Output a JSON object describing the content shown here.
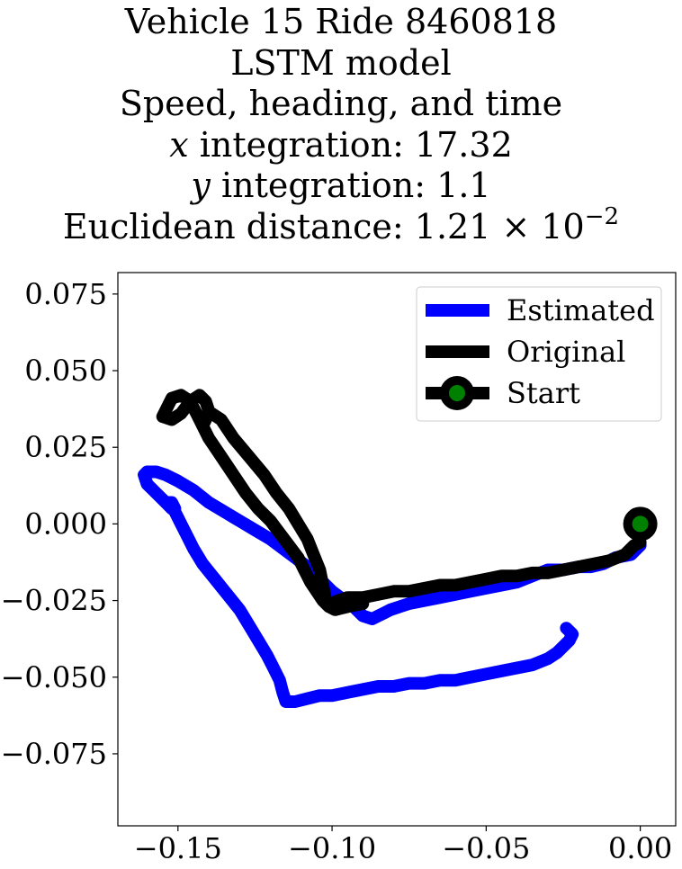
{
  "chart_data": {
    "type": "line",
    "title": {
      "line1": "Vehicle 15 Ride 8460818",
      "line2": "LSTM model",
      "line3": "Speed, heading, and time",
      "line4_var": "x",
      "line4_text": " integration: 17.32",
      "line5_var": "y",
      "line5_text": " integration: 1.1",
      "line6_text": "Euclidean distance: 1.21 × 10",
      "line6_exp": "−2"
    },
    "xlim": [
      -0.1695,
      0.0115
    ],
    "ylim": [
      -0.0985,
      0.082
    ],
    "xticks": [
      -0.15,
      -0.1,
      -0.05,
      0.0
    ],
    "xtick_labels": [
      "−0.15",
      "−0.10",
      "−0.05",
      "0.00"
    ],
    "yticks": [
      0.075,
      0.05,
      0.025,
      0.0,
      -0.025,
      -0.05,
      -0.075
    ],
    "ytick_labels": [
      "0.075",
      "0.050",
      "0.025",
      "0.000",
      "−0.025",
      "−0.050",
      "−0.075"
    ],
    "grid": false,
    "legend_position": "upper right",
    "series": [
      {
        "name": "Estimated",
        "color": "#0000ff",
        "x": [
          0.0,
          -0.003,
          -0.008,
          -0.012,
          -0.016,
          -0.02,
          -0.025,
          -0.03,
          -0.035,
          -0.04,
          -0.045,
          -0.05,
          -0.055,
          -0.06,
          -0.065,
          -0.07,
          -0.075,
          -0.078,
          -0.081,
          -0.083,
          -0.085,
          -0.087,
          -0.09,
          -0.093,
          -0.096,
          -0.1,
          -0.104,
          -0.108,
          -0.112,
          -0.116,
          -0.12,
          -0.125,
          -0.13,
          -0.135,
          -0.14,
          -0.145,
          -0.15,
          -0.154,
          -0.157,
          -0.16,
          -0.161,
          -0.16,
          -0.157,
          -0.154,
          -0.152,
          -0.151,
          -0.152,
          -0.153,
          -0.151,
          -0.149,
          -0.147,
          -0.145,
          -0.142,
          -0.138,
          -0.134,
          -0.13,
          -0.127,
          -0.124,
          -0.121,
          -0.119,
          -0.117,
          -0.116,
          -0.115,
          -0.112,
          -0.108,
          -0.104,
          -0.1,
          -0.095,
          -0.09,
          -0.085,
          -0.08,
          -0.075,
          -0.07,
          -0.065,
          -0.06,
          -0.055,
          -0.05,
          -0.045,
          -0.04,
          -0.035,
          -0.03,
          -0.027,
          -0.025,
          -0.024,
          -0.023,
          -0.022,
          -0.024
        ],
        "y": [
          -0.007,
          -0.01,
          -0.011,
          -0.013,
          -0.014,
          -0.014,
          -0.015,
          -0.015,
          -0.017,
          -0.019,
          -0.02,
          -0.021,
          -0.022,
          -0.023,
          -0.024,
          -0.025,
          -0.026,
          -0.027,
          -0.028,
          -0.029,
          -0.03,
          -0.031,
          -0.03,
          -0.027,
          -0.025,
          -0.022,
          -0.018,
          -0.014,
          -0.011,
          -0.008,
          -0.005,
          -0.002,
          0.001,
          0.004,
          0.007,
          0.011,
          0.014,
          0.016,
          0.017,
          0.017,
          0.016,
          0.013,
          0.01,
          0.007,
          0.005,
          0.005,
          0.007,
          0.007,
          0.004,
          0.0,
          -0.004,
          -0.008,
          -0.013,
          -0.018,
          -0.023,
          -0.028,
          -0.033,
          -0.038,
          -0.043,
          -0.047,
          -0.051,
          -0.055,
          -0.058,
          -0.058,
          -0.057,
          -0.056,
          -0.056,
          -0.055,
          -0.054,
          -0.053,
          -0.053,
          -0.052,
          -0.052,
          -0.051,
          -0.051,
          -0.05,
          -0.049,
          -0.048,
          -0.047,
          -0.046,
          -0.044,
          -0.042,
          -0.04,
          -0.039,
          -0.038,
          -0.036,
          -0.034
        ]
      },
      {
        "name": "Original",
        "color": "#000000",
        "x": [
          0.0,
          -0.002,
          -0.005,
          -0.01,
          -0.015,
          -0.02,
          -0.025,
          -0.03,
          -0.035,
          -0.04,
          -0.045,
          -0.05,
          -0.055,
          -0.06,
          -0.065,
          -0.07,
          -0.075,
          -0.08,
          -0.085,
          -0.09,
          -0.095,
          -0.098,
          -0.1,
          -0.101,
          -0.102,
          -0.103,
          -0.104,
          -0.106,
          -0.108,
          -0.111,
          -0.114,
          -0.118,
          -0.122,
          -0.127,
          -0.132,
          -0.136,
          -0.139,
          -0.141,
          -0.142,
          -0.141,
          -0.14,
          -0.141,
          -0.143,
          -0.146,
          -0.149,
          -0.152,
          -0.155,
          -0.152,
          -0.149,
          -0.146,
          -0.143,
          -0.14,
          -0.136,
          -0.132,
          -0.128,
          -0.124,
          -0.12,
          -0.117,
          -0.114,
          -0.111,
          -0.109,
          -0.107,
          -0.105,
          -0.103,
          -0.101,
          -0.099,
          -0.095,
          -0.09
        ],
        "y": [
          -0.006,
          -0.007,
          -0.01,
          -0.012,
          -0.013,
          -0.014,
          -0.015,
          -0.016,
          -0.016,
          -0.017,
          -0.017,
          -0.018,
          -0.019,
          -0.02,
          -0.02,
          -0.021,
          -0.022,
          -0.022,
          -0.023,
          -0.024,
          -0.024,
          -0.025,
          -0.026,
          -0.027,
          -0.025,
          -0.02,
          -0.015,
          -0.01,
          -0.005,
          0.0,
          0.005,
          0.01,
          0.016,
          0.022,
          0.028,
          0.034,
          0.036,
          0.035,
          0.032,
          0.034,
          0.037,
          0.04,
          0.042,
          0.04,
          0.036,
          0.034,
          0.035,
          0.041,
          0.042,
          0.04,
          0.034,
          0.028,
          0.022,
          0.016,
          0.01,
          0.005,
          0.001,
          -0.003,
          -0.007,
          -0.011,
          -0.015,
          -0.019,
          -0.022,
          -0.025,
          -0.027,
          -0.028,
          -0.027,
          -0.026
        ]
      }
    ],
    "start_marker": {
      "name": "Start",
      "x": 0.0,
      "y": 0.0,
      "edge_color": "#000000",
      "face_color": "#008000"
    }
  }
}
